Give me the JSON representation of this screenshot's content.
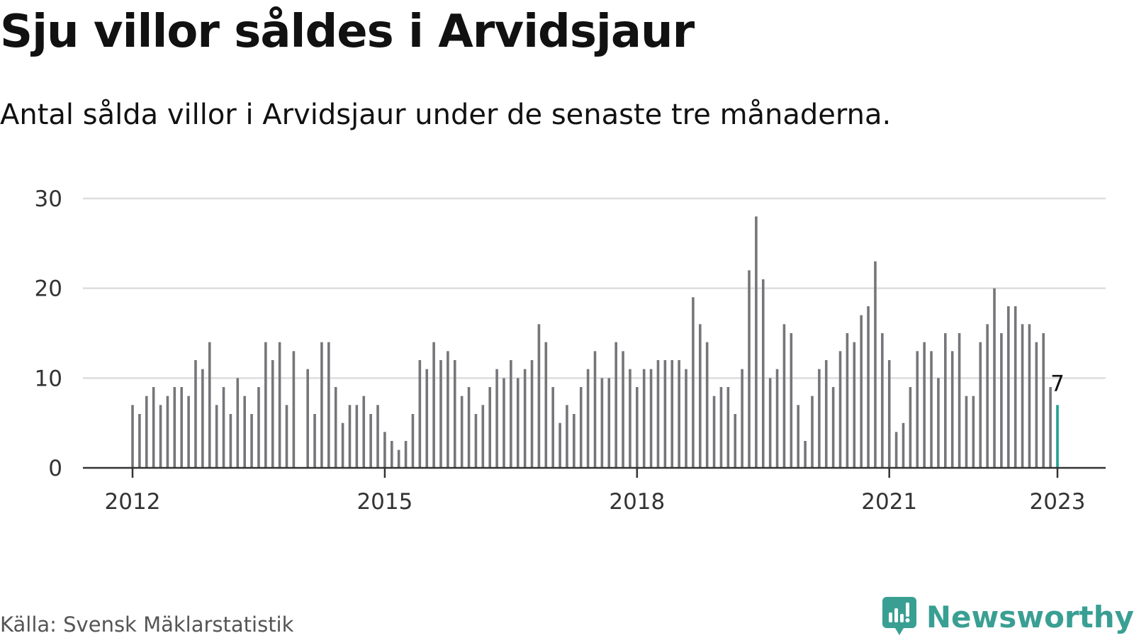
{
  "title": "Sju villor såldes i Arvidsjaur",
  "subtitle": "Antal sålda villor i Arvidsjaur under de senaste tre månaderna.",
  "source": "Källa: Svensk Mäklarstatistik",
  "brand": {
    "name": "Newsworthy",
    "color": "#3a9f93",
    "icon": "newsworthy-logo-icon"
  },
  "chart_data": {
    "type": "bar",
    "title": "Sju villor såldes i Arvidsjaur",
    "xlabel": "",
    "ylabel": "",
    "ylim": [
      0,
      30
    ],
    "yticks": [
      0,
      10,
      20,
      30
    ],
    "grid": true,
    "start": "2012-01",
    "x_ticks": [
      {
        "label": "2012",
        "index": 0
      },
      {
        "label": "2015",
        "index": 36
      },
      {
        "label": "2018",
        "index": 72
      },
      {
        "label": "2021",
        "index": 108
      },
      {
        "label": "2023",
        "index": 132
      }
    ],
    "bar_color": "#76767a",
    "highlight_color": "#20a090",
    "highlight_label": "7",
    "values": [
      7,
      6,
      8,
      9,
      7,
      8,
      9,
      9,
      8,
      12,
      11,
      14,
      7,
      9,
      6,
      10,
      8,
      6,
      9,
      14,
      12,
      14,
      7,
      13,
      0,
      11,
      6,
      14,
      14,
      9,
      5,
      7,
      7,
      8,
      6,
      7,
      4,
      3,
      2,
      3,
      6,
      12,
      11,
      14,
      12,
      13,
      12,
      8,
      9,
      6,
      7,
      9,
      11,
      10,
      12,
      10,
      11,
      12,
      16,
      14,
      9,
      5,
      7,
      6,
      9,
      11,
      13,
      10,
      10,
      14,
      13,
      11,
      9,
      11,
      11,
      12,
      12,
      12,
      12,
      11,
      19,
      16,
      14,
      8,
      9,
      9,
      6,
      11,
      22,
      28,
      21,
      10,
      11,
      16,
      15,
      7,
      3,
      8,
      11,
      12,
      9,
      13,
      15,
      14,
      17,
      18,
      23,
      15,
      12,
      4,
      5,
      9,
      13,
      14,
      13,
      10,
      15,
      13,
      15,
      8,
      8,
      14,
      16,
      20,
      15,
      18,
      18,
      16,
      16,
      14,
      15,
      9,
      7
    ]
  }
}
